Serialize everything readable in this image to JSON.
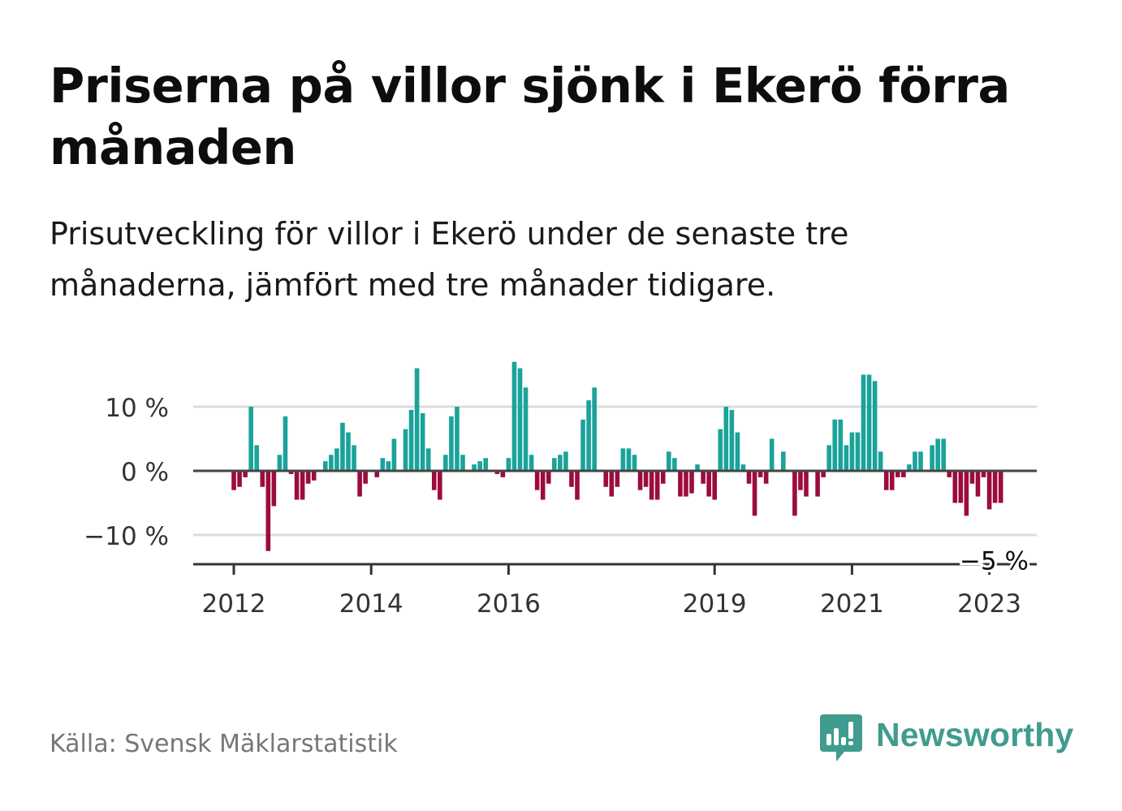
{
  "title": "Priserna på villor sjönk i Ekerö förra månaden",
  "subtitle": "Prisutveckling för villor i Ekerö under de senaste tre månaderna, jämfört med tre månader tidigare.",
  "source": "Källa: Svensk Mäklarstatistik",
  "brand": "Newsworthy",
  "colors": {
    "positive": "#1aa39a",
    "negative": "#9c0c3e",
    "brand": "#3f9c8e"
  },
  "chart_data": {
    "type": "bar",
    "ylim": [
      -14,
      18
    ],
    "yticks": [
      {
        "value": 10,
        "label": "10 %"
      },
      {
        "value": 0,
        "label": "0 %"
      },
      {
        "value": -10,
        "label": "−10 %"
      }
    ],
    "xticks": [
      {
        "index": 0,
        "label": "2012"
      },
      {
        "index": 24,
        "label": "2014"
      },
      {
        "index": 48,
        "label": "2016"
      },
      {
        "index": 84,
        "label": "2019"
      },
      {
        "index": 108,
        "label": "2021"
      },
      {
        "index": 132,
        "label": "2023"
      }
    ],
    "annotation": {
      "index": 133,
      "label": "−5 %"
    },
    "values": [
      -3,
      -2.5,
      -1,
      10,
      4,
      -2.5,
      -12.5,
      -5.5,
      2.5,
      8.5,
      -0.5,
      -4.5,
      -4.5,
      -2,
      -1.5,
      0,
      1.5,
      2.5,
      3.5,
      7.5,
      6,
      4,
      -4,
      -2,
      0,
      -1,
      2,
      1.5,
      5,
      0,
      6.5,
      9.5,
      16,
      9,
      3.5,
      -3,
      -4.5,
      2.5,
      8.5,
      10,
      2.5,
      0,
      1,
      1.5,
      2,
      0,
      -0.5,
      -1,
      2,
      17,
      16,
      13,
      2.5,
      -3,
      -4.5,
      -2,
      2,
      2.5,
      3,
      -2.5,
      -4.5,
      8,
      11,
      13,
      0,
      -2.5,
      -4,
      -2.5,
      3.5,
      3.5,
      2.5,
      -3,
      -2.5,
      -4.5,
      -4.5,
      -2,
      3,
      2,
      -4,
      -4,
      -3.5,
      1,
      -2,
      -4,
      -4.5,
      6.5,
      10,
      9.5,
      6,
      1,
      -2,
      -7,
      -1,
      -2,
      5,
      0,
      3,
      0,
      -7,
      -3,
      -4,
      0,
      -4,
      -1,
      4,
      8,
      8,
      4,
      6,
      6,
      15,
      15,
      14,
      3,
      -3,
      -3,
      -1,
      -1,
      1,
      3,
      3,
      0,
      4,
      5,
      5,
      -1,
      -5,
      -5,
      -7,
      -2,
      -4,
      -1,
      -6,
      -5,
      -5
    ]
  }
}
